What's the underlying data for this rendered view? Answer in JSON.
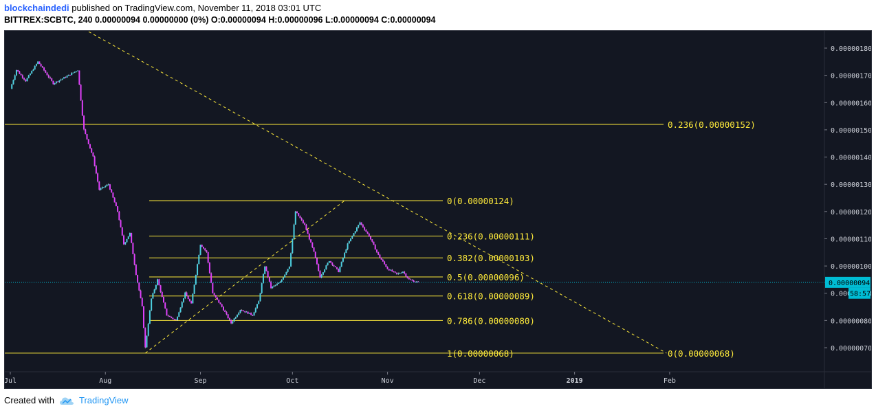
{
  "header": {
    "user": "blockchaindedi",
    "published": "published on TradingView.com, November 11, 2018 03:01 UTC",
    "line2": "BITTREX:SCBTC, 240  0.00000094  0.00000000 (0%)  O:0.00000094  H:0.00000096  L:0.00000094  C:0.00000094"
  },
  "footer": {
    "created": "Created with",
    "brand": "TradingView"
  },
  "colors": {
    "background": "#131722",
    "fib": "#ffeb3b",
    "candle_up": "#4dd0e1",
    "candle_down": "#e040fb",
    "wick": "#ffffff",
    "price_line": "#00bcd4"
  },
  "chart_data": {
    "type": "candlestick",
    "symbol": "BITTREX:SCBTC",
    "interval": "240",
    "x_ticks": [
      "Jul",
      "Aug",
      "Sep",
      "Oct",
      "Nov",
      "Dec",
      "2019",
      "Feb"
    ],
    "y_ticks": [
      "0.00000180",
      "0.00000170",
      "0.00000160",
      "0.00000150",
      "0.00000140",
      "0.00000130",
      "0.00000120",
      "0.00000110",
      "0.00000100",
      "0.00000090",
      "0.00000080",
      "0.00000070"
    ],
    "ylim": [
      6.1e-07,
      1.84e-06
    ],
    "last_price": "0.00000094",
    "countdown": "58:57",
    "price_path": [
      {
        "date": "2018-07-01",
        "close": 1.65e-06
      },
      {
        "date": "2018-07-03",
        "close": 1.72e-06
      },
      {
        "date": "2018-07-06",
        "close": 1.68e-06
      },
      {
        "date": "2018-07-10",
        "close": 1.75e-06
      },
      {
        "date": "2018-07-15",
        "close": 1.67e-06
      },
      {
        "date": "2018-07-20",
        "close": 1.7e-06
      },
      {
        "date": "2018-07-23",
        "close": 1.72e-06
      },
      {
        "date": "2018-07-25",
        "close": 1.5e-06
      },
      {
        "date": "2018-07-28",
        "close": 1.4e-06
      },
      {
        "date": "2018-07-30",
        "close": 1.28e-06
      },
      {
        "date": "2018-08-02",
        "close": 1.3e-06
      },
      {
        "date": "2018-08-05",
        "close": 1.2e-06
      },
      {
        "date": "2018-08-07",
        "close": 1.08e-06
      },
      {
        "date": "2018-08-09",
        "close": 1.12e-06
      },
      {
        "date": "2018-08-11",
        "close": 9.7e-07
      },
      {
        "date": "2018-08-13",
        "close": 8.5e-07
      },
      {
        "date": "2018-08-14",
        "close": 7e-07
      },
      {
        "date": "2018-08-16",
        "close": 8.8e-07
      },
      {
        "date": "2018-08-18",
        "close": 9.5e-07
      },
      {
        "date": "2018-08-21",
        "close": 8.2e-07
      },
      {
        "date": "2018-08-24",
        "close": 8e-07
      },
      {
        "date": "2018-08-27",
        "close": 9e-07
      },
      {
        "date": "2018-08-29",
        "close": 8.6e-07
      },
      {
        "date": "2018-09-01",
        "close": 1.08e-06
      },
      {
        "date": "2018-09-03",
        "close": 1.05e-06
      },
      {
        "date": "2018-09-05",
        "close": 9e-07
      },
      {
        "date": "2018-09-08",
        "close": 8.5e-07
      },
      {
        "date": "2018-09-11",
        "close": 7.9e-07
      },
      {
        "date": "2018-09-14",
        "close": 8.4e-07
      },
      {
        "date": "2018-09-18",
        "close": 8.2e-07
      },
      {
        "date": "2018-09-20",
        "close": 8.7e-07
      },
      {
        "date": "2018-09-22",
        "close": 1e-06
      },
      {
        "date": "2018-09-24",
        "close": 9.2e-07
      },
      {
        "date": "2018-09-27",
        "close": 9.4e-07
      },
      {
        "date": "2018-09-30",
        "close": 1e-06
      },
      {
        "date": "2018-10-02",
        "close": 1.2e-06
      },
      {
        "date": "2018-10-05",
        "close": 1.15e-06
      },
      {
        "date": "2018-10-08",
        "close": 1.05e-06
      },
      {
        "date": "2018-10-10",
        "close": 9.6e-07
      },
      {
        "date": "2018-10-13",
        "close": 1.02e-06
      },
      {
        "date": "2018-10-16",
        "close": 9.8e-07
      },
      {
        "date": "2018-10-19",
        "close": 1.08e-06
      },
      {
        "date": "2018-10-21",
        "close": 1.12e-06
      },
      {
        "date": "2018-10-23",
        "close": 1.16e-06
      },
      {
        "date": "2018-10-26",
        "close": 1.11e-06
      },
      {
        "date": "2018-10-29",
        "close": 1.04e-06
      },
      {
        "date": "2018-11-01",
        "close": 9.9e-07
      },
      {
        "date": "2018-11-04",
        "close": 9.7e-07
      },
      {
        "date": "2018-11-06",
        "close": 9.8e-07
      },
      {
        "date": "2018-11-08",
        "close": 9.5e-07
      },
      {
        "date": "2018-11-11",
        "close": 9.4e-07
      }
    ],
    "fib_levels_major": [
      {
        "label": "0.236(0.00000152)",
        "price": 1.52e-06
      }
    ],
    "fib_levels_minor": [
      {
        "label": "0(0.00000124)",
        "price": 1.24e-06
      },
      {
        "label": "0.236(0.00000111)",
        "price": 1.11e-06
      },
      {
        "label": "0.382(0.00000103)",
        "price": 1.03e-06
      },
      {
        "label": "0.5(0.00000096)",
        "price": 9.6e-07
      },
      {
        "label": "0.618(0.00000089)",
        "price": 8.9e-07
      },
      {
        "label": "0.786(0.00000080)",
        "price": 8e-07
      },
      {
        "label": "1(0.00000068)",
        "price": 6.8e-07
      }
    ],
    "baseline_label": "0(0.00000068)",
    "trendlines": [
      {
        "from": {
          "date": "2018-08-14",
          "price": 6.8e-07
        },
        "to": {
          "date": "2018-10-18",
          "price": 1.24e-06
        }
      },
      {
        "from": {
          "date": "2018-07-25",
          "price": 1.87e-06
        },
        "to": {
          "date": "2019-01-31",
          "price": 6.8e-07
        }
      }
    ]
  }
}
